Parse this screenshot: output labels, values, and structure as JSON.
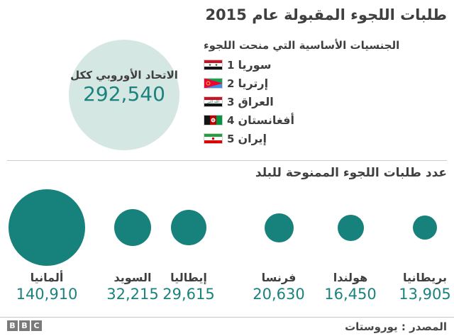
{
  "title": "طلبات اللجوء المقبولة عام 2015",
  "colors": {
    "teal": "#17817B",
    "teal_light": "#D5E7E3",
    "number_teal": "#1B827D",
    "text_dark": "#3F3F3F",
    "divider_gray": "#CCCCCC",
    "bbc_gray": "#7A7A7A"
  },
  "eu_total": {
    "label": "الاتحاد الأوروبي ككل",
    "value": "292,540"
  },
  "nationalities": {
    "heading": "الجنسيات الأساسية التي منحت اللجوء",
    "items": [
      {
        "rank": "1",
        "name": "سوريا",
        "flag": "syria-flag-icon"
      },
      {
        "rank": "2",
        "name": "إرتريا",
        "flag": "eritrea-flag-icon"
      },
      {
        "rank": "3",
        "name": "العراق",
        "flag": "iraq-flag-icon"
      },
      {
        "rank": "4",
        "name": "أفغانستان",
        "flag": "afghanistan-flag-icon"
      },
      {
        "rank": "5",
        "name": "إيران",
        "flag": "iran-flag-icon"
      }
    ]
  },
  "by_country": {
    "heading": "عدد طلبات اللجوء الممنوحة للبلد",
    "countries": [
      {
        "name": "ألمانيا",
        "value": "140,910"
      },
      {
        "name": "السويد",
        "value": "32,215"
      },
      {
        "name": "إيطاليا",
        "value": "29,615"
      },
      {
        "name": "فرنسا",
        "value": "20,630"
      },
      {
        "name": "هولندا",
        "value": "16,450"
      },
      {
        "name": "بريطانيا",
        "value": "13,905"
      }
    ]
  },
  "footer": {
    "logo_letters": [
      "B",
      "B",
      "C"
    ],
    "source": "المصدر : يوروستات"
  },
  "chart_data": {
    "type": "bubble",
    "title": "طلبات اللجوء المقبولة عام 2015",
    "eu_total": {
      "label": "الاتحاد الأوروبي ككل",
      "value": 292540
    },
    "nationalities_heading": "الجنسيات الأساسية التي منحت اللجوء",
    "ranked_nationalities": [
      {
        "rank": 1,
        "country": "سوريا"
      },
      {
        "rank": 2,
        "country": "إرتريا"
      },
      {
        "rank": 3,
        "country": "العراق"
      },
      {
        "rank": 4,
        "country": "أفغانستان"
      },
      {
        "rank": 5,
        "country": "إيران"
      }
    ],
    "series_label": "عدد طلبات اللجوء الممنوحة للبلد",
    "categories": [
      "ألمانيا",
      "السويد",
      "إيطاليا",
      "فرنسا",
      "هولندا",
      "بريطانيا"
    ],
    "values": [
      140910,
      32215,
      29615,
      20630,
      16450,
      13905
    ],
    "bubble_area_proportional_to_value": true,
    "legend_position": "none",
    "source": "يوروستات"
  }
}
